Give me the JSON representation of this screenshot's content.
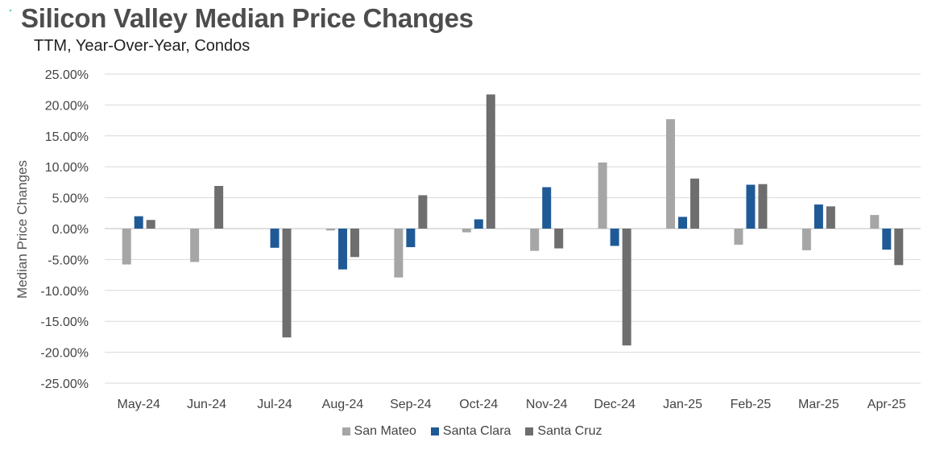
{
  "title": "Silicon Valley Median Price Changes",
  "subtitle": "TTM, Year-Over-Year,  Condos",
  "colors": {
    "san_mateo": "#a6a6a6",
    "santa_clara": "#1f5a96",
    "santa_cruz": "#6e6e6e",
    "grid": "#d9d9d9",
    "axis": "#bfbfbf"
  },
  "chart_data": {
    "type": "bar",
    "title": "Silicon Valley Median Price Changes",
    "subtitle": "TTM, Year-Over-Year,  Condos",
    "ylabel": "Median Price Changes",
    "xlabel": "",
    "ylim": [
      -25,
      25
    ],
    "yticks": [
      25,
      20,
      15,
      10,
      5,
      0,
      -5,
      -10,
      -15,
      -20,
      -25
    ],
    "ytick_labels": [
      "25.00%",
      "20.00%",
      "15.00%",
      "10.00%",
      "5.00%",
      "0.00%",
      "-5.00%",
      "-10.00%",
      "-15.00%",
      "-20.00%",
      "-25.00%"
    ],
    "grid": true,
    "legend_position": "bottom",
    "categories": [
      "May-24",
      "Jun-24",
      "Jul-24",
      "Aug-24",
      "Sep-24",
      "Oct-24",
      "Nov-24",
      "Dec-24",
      "Jan-25",
      "Feb-25",
      "Mar-25",
      "Apr-25"
    ],
    "series": [
      {
        "name": "San Mateo",
        "color": "#a6a6a6",
        "values": [
          -5.8,
          -5.4,
          0,
          -0.3,
          -7.9,
          -0.6,
          -3.6,
          10.7,
          17.7,
          -2.6,
          -3.5,
          2.2
        ]
      },
      {
        "name": "Santa Clara",
        "color": "#1f5a96",
        "values": [
          2.0,
          0,
          -3.1,
          -6.6,
          -3.0,
          1.5,
          6.7,
          -2.8,
          1.9,
          7.1,
          3.9,
          -3.4
        ]
      },
      {
        "name": "Santa Cruz",
        "color": "#6e6e6e",
        "values": [
          1.4,
          6.9,
          -17.6,
          -4.6,
          5.4,
          21.7,
          -3.2,
          -18.9,
          8.1,
          7.2,
          3.6,
          -5.9
        ]
      }
    ]
  }
}
